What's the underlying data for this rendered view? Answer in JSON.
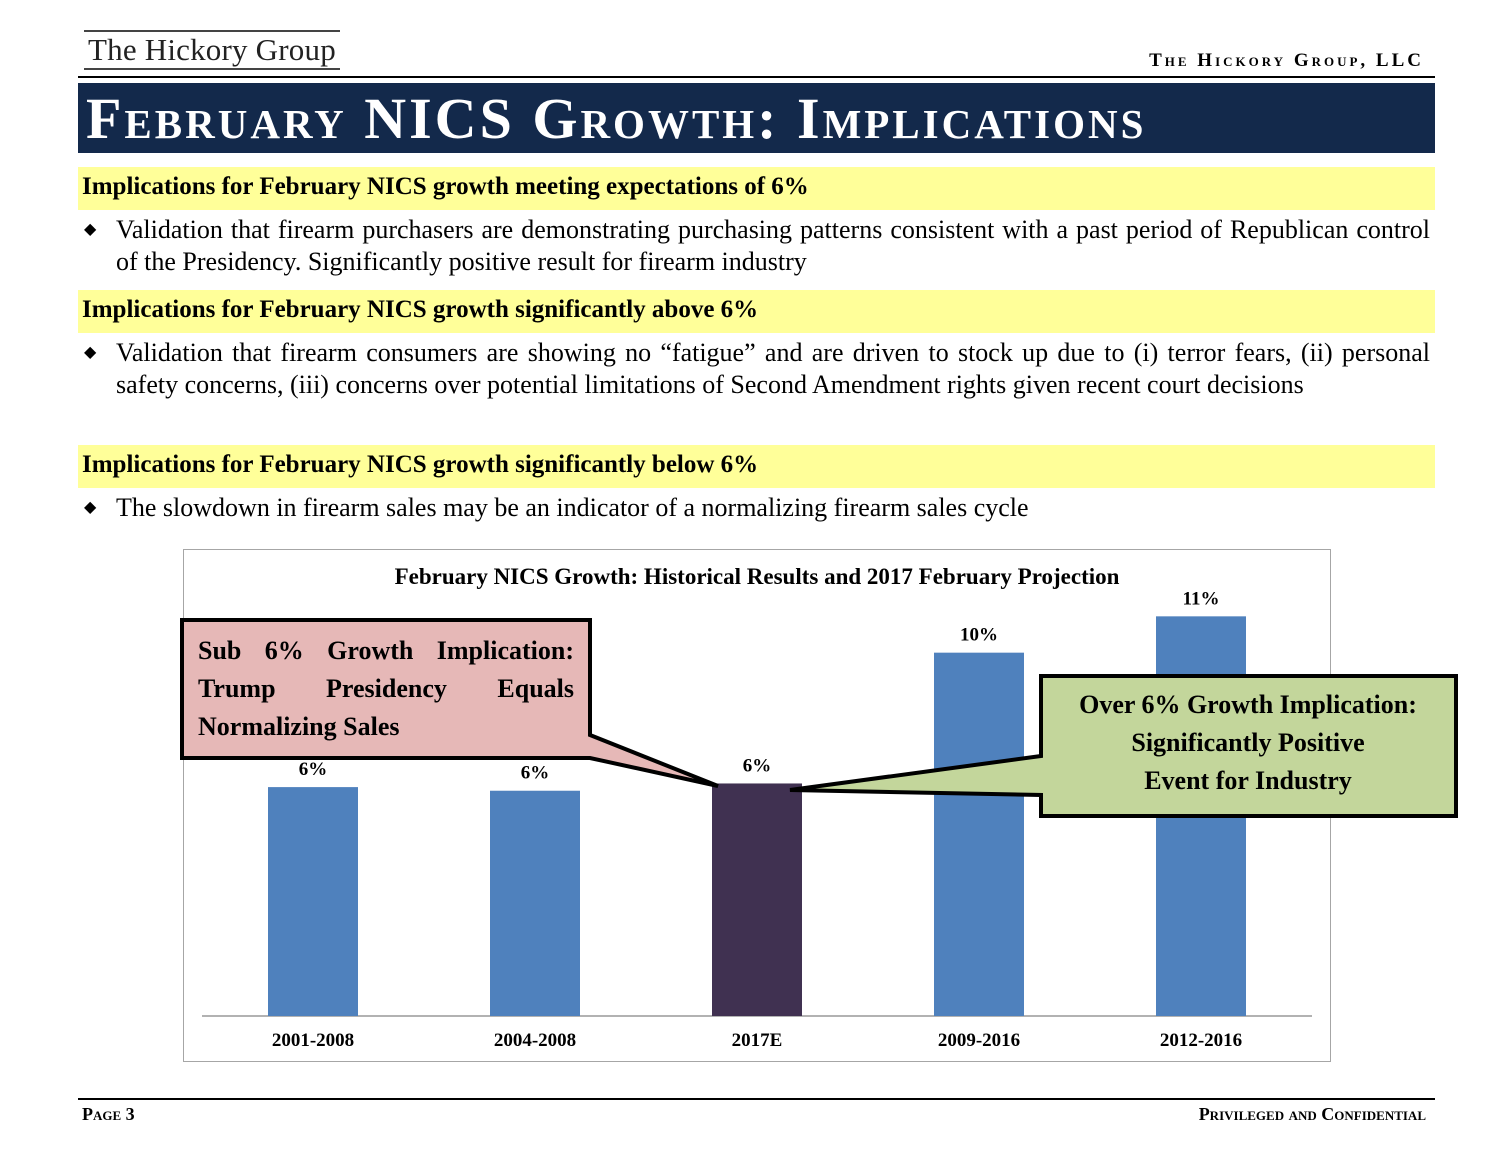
{
  "header": {
    "logo_text": "The Hickory Group",
    "firm_name": "The Hickory Group, LLC",
    "title": "February NICS Growth: Implications"
  },
  "sections": [
    {
      "heading": "Implications for February NICS growth meeting expectations of 6%",
      "bullet": "Validation that firearm purchasers are demonstrating purchasing patterns consistent with a past period of Republican control of the Presidency.  Significantly positive result for firearm industry"
    },
    {
      "heading": "Implications for February NICS growth significantly above 6%",
      "bullet": "Validation that firearm consumers are showing no “fatigue” and are driven to stock up due to (i) terror fears, (ii) personal safety concerns, (iii) concerns over potential limitations of Second Amendment rights given recent court decisions"
    },
    {
      "heading": "Implications for February NICS growth significantly below 6%",
      "bullet": "The slowdown in firearm sales may be an indicator of a normalizing firearm sales cycle"
    }
  ],
  "callouts": {
    "left_line1": "Sub 6% Growth Implication:",
    "left_line2": "Trump Presidency Equals",
    "left_line3": "Normalizing Sales",
    "right_line1": "Over 6% Growth Implication:",
    "right_line2": "Significantly Positive",
    "right_line3": "Event for Industry",
    "left_fill": "#e6b8b7",
    "right_fill": "#c3d69b"
  },
  "chart_data": {
    "type": "bar",
    "title": "February NICS Growth: Historical Results and 2017 February Projection",
    "categories": [
      "2001-2008",
      "2004-2008",
      "2017E",
      "2009-2016",
      "2012-2016"
    ],
    "values": [
      6.3,
      6.2,
      6.4,
      10.0,
      11.0
    ],
    "labels": [
      "6%",
      "6%",
      "6%",
      "10%",
      "11%"
    ],
    "colors": [
      "#4f81bd",
      "#4f81bd",
      "#403151",
      "#4f81bd",
      "#4f81bd"
    ],
    "xlabel": "",
    "ylabel": "",
    "ylim": [
      0,
      12
    ],
    "grid": false
  },
  "footer": {
    "page": "Page 3",
    "confidential": "Privileged and Confidential"
  }
}
